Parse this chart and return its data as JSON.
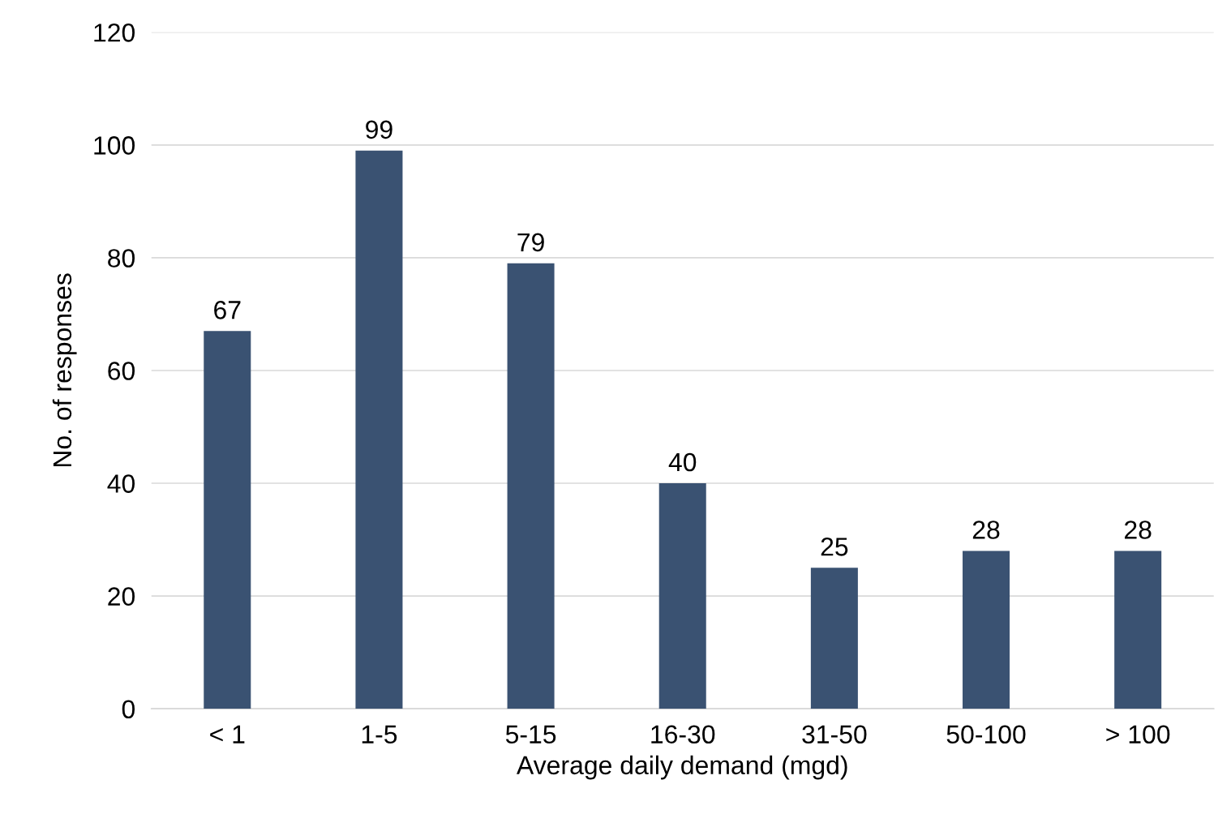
{
  "chart_data": {
    "type": "bar",
    "xlabel": "Average daily demand (mgd)",
    "ylabel": "No. of responses",
    "categories": [
      "< 1",
      "1-5",
      "5-15",
      "16-30",
      "31-50",
      "50-100",
      "> 100"
    ],
    "values": [
      67,
      99,
      79,
      40,
      25,
      28,
      28
    ],
    "color": "#3a5272",
    "ylim": [
      0,
      120
    ],
    "yticks": [
      0,
      20,
      40,
      60,
      80,
      100,
      120
    ],
    "grid": "y",
    "data_labels": true
  }
}
